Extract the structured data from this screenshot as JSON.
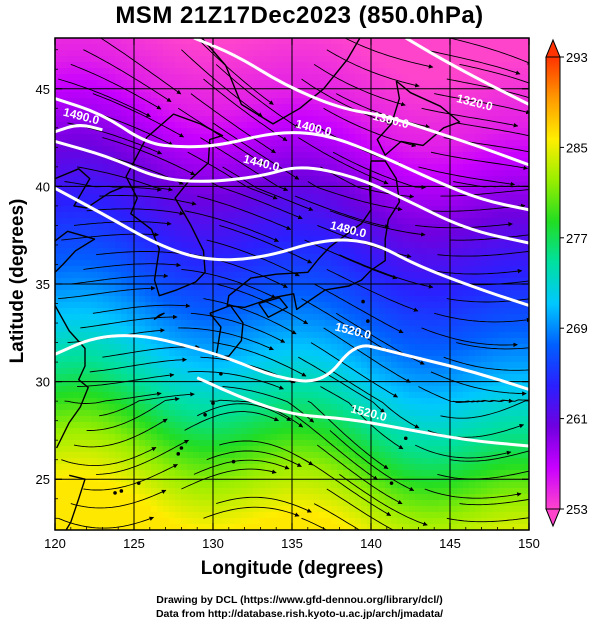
{
  "title": "MSM 21Z17Dec2023 (850.0hPa)",
  "xlabel": "Longitude (degrees)",
  "ylabel": "Latitude  (degrees)",
  "credits": [
    "Drawing by DCL (https://www.gfd-dennou.org/library/dcl/)",
    "Data from http://database.rish.kyoto-u.ac.jp/arch/jmadata/"
  ],
  "chart_data": {
    "type": "heatmap",
    "title": "MSM 21Z17Dec2023 (850.0hPa)",
    "xlabel": "Longitude (degrees)",
    "ylabel": "Latitude  (degrees)",
    "xlim": [
      120,
      150
    ],
    "ylim": [
      22.4,
      47.6
    ],
    "x_ticks": [
      120,
      125,
      130,
      135,
      140,
      145,
      150
    ],
    "y_ticks": [
      25,
      30,
      35,
      40,
      45
    ],
    "grid": true,
    "colorbar": {
      "min": 253,
      "max": 293,
      "tick_values": [
        253,
        261,
        269,
        277,
        285,
        293
      ],
      "tick_labels": [
        "253",
        "261",
        "269",
        "277",
        "285",
        "293"
      ],
      "colors": [
        "#ff44cc",
        "#c800ff",
        "#7000e0",
        "#2a20ff",
        "#0060ff",
        "#00c8ff",
        "#00e0a0",
        "#22dd22",
        "#99ee00",
        "#ffee00",
        "#ff9900",
        "#ff3300"
      ]
    },
    "field_gradient": [
      {
        "lat": 22.4,
        "value": 286
      },
      {
        "lat": 25.0,
        "value": 282
      },
      {
        "lat": 28.0,
        "value": 276
      },
      {
        "lat": 31.0,
        "value": 271
      },
      {
        "lat": 34.0,
        "value": 267
      },
      {
        "lat": 36.5,
        "value": 264
      },
      {
        "lat": 39.0,
        "value": 261
      },
      {
        "lat": 41.5,
        "value": 258
      },
      {
        "lat": 44.0,
        "value": 255
      },
      {
        "lat": 47.6,
        "value": 253
      }
    ],
    "contours": [
      {
        "label": "1320.0",
        "points": [
          [
            142.2,
            47.6
          ],
          [
            144.5,
            46.5
          ],
          [
            147.5,
            45.2
          ],
          [
            150,
            44.2
          ]
        ],
        "label_at": [
          146.5,
          44.1
        ]
      },
      {
        "label": "1360.0",
        "points": [
          [
            128.8,
            47.6
          ],
          [
            131.5,
            46.7
          ],
          [
            134.5,
            45.2
          ],
          [
            138,
            44.0
          ],
          [
            141,
            43.6
          ],
          [
            144,
            42.8
          ],
          [
            147,
            42.0
          ],
          [
            150,
            41.1
          ]
        ],
        "label_at": [
          141.2,
          43.2
        ]
      },
      {
        "label": "1400.0",
        "points": [
          [
            120,
            44.5
          ],
          [
            123,
            43.7
          ],
          [
            125.8,
            42.2
          ],
          [
            128,
            42.0
          ],
          [
            130.5,
            42.1
          ],
          [
            134,
            42.8
          ],
          [
            137,
            42.7
          ],
          [
            140,
            41.8
          ],
          [
            144,
            40.3
          ],
          [
            147,
            39.3
          ],
          [
            150,
            38.8
          ]
        ],
        "label_at": [
          136.3,
          42.8
        ]
      },
      {
        "label": "1440.0",
        "points": [
          [
            120,
            42.3
          ],
          [
            123.5,
            41.5
          ],
          [
            126.5,
            40.4
          ],
          [
            129.5,
            40.2
          ],
          [
            133,
            40.5
          ],
          [
            135.5,
            41.1
          ],
          [
            139,
            40.5
          ],
          [
            142,
            39.4
          ],
          [
            146,
            37.8
          ],
          [
            150,
            37.1
          ]
        ],
        "label_at": [
          133,
          41.0
        ]
      },
      {
        "label": "1480.0",
        "points": [
          [
            120,
            39.9
          ],
          [
            123,
            38.6
          ],
          [
            126.5,
            37.0
          ],
          [
            129.5,
            36.2
          ],
          [
            133,
            36.3
          ],
          [
            137,
            37.3
          ],
          [
            140,
            37.2
          ],
          [
            143,
            35.9
          ],
          [
            147,
            34.7
          ],
          [
            150,
            33.9
          ]
        ],
        "label_at": [
          138.5,
          37.6
        ]
      },
      {
        "label": "1490.0",
        "points": [
          [
            120,
            42.8
          ],
          [
            121.5,
            43.2
          ],
          [
            123,
            42.9
          ]
        ],
        "label_at": [
          121.6,
          43.4
        ]
      },
      {
        "label": "1520.0",
        "points": [
          [
            120,
            31.4
          ],
          [
            122.5,
            32.3
          ],
          [
            125.5,
            32.4
          ],
          [
            128.5,
            31.8
          ],
          [
            131,
            31.2
          ],
          [
            134,
            30.2
          ],
          [
            137,
            29.9
          ],
          [
            139,
            32.0
          ],
          [
            141,
            31.6
          ],
          [
            143,
            31.2
          ],
          [
            146.5,
            30.5
          ],
          [
            150,
            29.6
          ]
        ],
        "label_at": [
          138.8,
          32.4
        ]
      },
      {
        "label": "1520.0",
        "points": [
          [
            129,
            30.2
          ],
          [
            132,
            29.1
          ],
          [
            135,
            28.3
          ],
          [
            138.5,
            28.1
          ],
          [
            142,
            27.6
          ],
          [
            146,
            27.0
          ],
          [
            150,
            26.7
          ]
        ],
        "label_at": [
          139.8,
          28.2
        ]
      }
    ],
    "streamlines_dominant_direction": "east"
  },
  "map_labels": {
    "coast": "coastline"
  }
}
